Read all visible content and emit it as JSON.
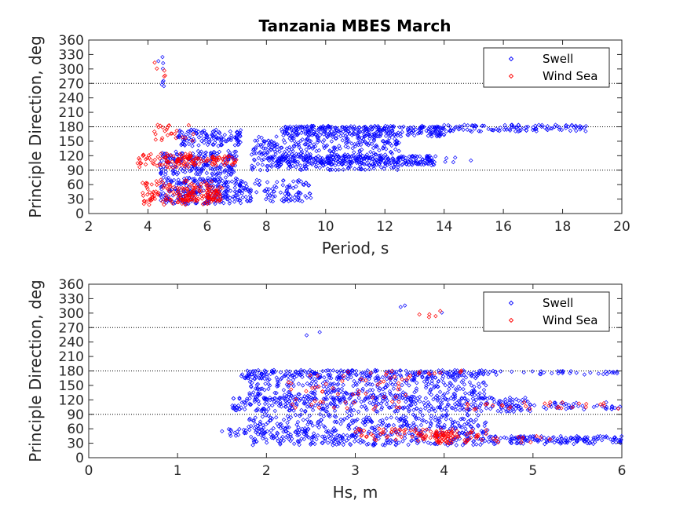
{
  "figure": {
    "title": "Tanzania MBES March"
  },
  "chart_data": [
    {
      "type": "scatter",
      "title": "Tanzania MBES March",
      "xlabel": "Period, s",
      "ylabel": "Principle Direction, deg",
      "xlim": [
        2,
        20
      ],
      "ylim": [
        0,
        360
      ],
      "xticks": [
        2,
        4,
        6,
        8,
        10,
        12,
        14,
        16,
        18,
        20
      ],
      "yticks": [
        0,
        30,
        60,
        90,
        120,
        150,
        180,
        210,
        240,
        270,
        300,
        330,
        360
      ],
      "reference_lines_y": [
        90,
        180,
        270
      ],
      "grid": false,
      "legend": {
        "placement": "top-right",
        "entries": [
          "Swell",
          "Wind Sea"
        ]
      },
      "series": [
        {
          "name": "Swell",
          "color": "#0000ff",
          "marker": "diamond",
          "clusters": [
            {
              "x": [
                4.3,
                4.6
              ],
              "y": [
                250,
                325
              ],
              "n": 8
            },
            {
              "x": [
                4.4,
                7.2
              ],
              "y": [
                20,
                75
              ],
              "n": 260
            },
            {
              "x": [
                4.4,
                7.0
              ],
              "y": [
                80,
                130
              ],
              "n": 200
            },
            {
              "x": [
                5.0,
                7.2
              ],
              "y": [
                140,
                175
              ],
              "n": 120
            },
            {
              "x": [
                7.0,
                9.5
              ],
              "y": [
                25,
                70
              ],
              "n": 110
            },
            {
              "x": [
                7.5,
                12.5
              ],
              "y": [
                90,
                160
              ],
              "n": 380
            },
            {
              "x": [
                8.0,
                13.7
              ],
              "y": [
                100,
                120
              ],
              "n": 260
            },
            {
              "x": [
                8.5,
                14.0
              ],
              "y": [
                160,
                182
              ],
              "n": 300
            },
            {
              "x": [
                13.5,
                18.8
              ],
              "y": [
                170,
                184
              ],
              "n": 120
            },
            {
              "x": [
                13.5,
                15.2
              ],
              "y": [
                105,
                120
              ],
              "n": 6
            }
          ]
        },
        {
          "name": "Wind Sea",
          "color": "#ff0000",
          "marker": "diamond",
          "clusters": [
            {
              "x": [
                4.1,
                4.6
              ],
              "y": [
                280,
                318
              ],
              "n": 5
            },
            {
              "x": [
                3.6,
                5.6
              ],
              "y": [
                95,
                125
              ],
              "n": 70
            },
            {
              "x": [
                4.2,
                5.6
              ],
              "y": [
                150,
                185
              ],
              "n": 25
            },
            {
              "x": [
                3.8,
                6.2
              ],
              "y": [
                18,
                70
              ],
              "n": 110
            },
            {
              "x": [
                5.0,
                7.0
              ],
              "y": [
                100,
                120
              ],
              "n": 70
            },
            {
              "x": [
                5.0,
                6.5
              ],
              "y": [
                25,
                55
              ],
              "n": 90
            }
          ]
        }
      ]
    },
    {
      "type": "scatter",
      "title": "",
      "xlabel": "Hs, m",
      "ylabel": "Principle Direction, deg",
      "xlim": [
        0,
        6
      ],
      "ylim": [
        0,
        360
      ],
      "xticks": [
        0,
        1,
        2,
        3,
        4,
        5,
        6
      ],
      "yticks": [
        0,
        30,
        60,
        90,
        120,
        150,
        180,
        210,
        240,
        270,
        300,
        330,
        360
      ],
      "reference_lines_y": [
        90,
        180,
        270
      ],
      "grid": false,
      "legend": {
        "placement": "top-right",
        "entries": [
          "Swell",
          "Wind Sea"
        ]
      },
      "series": [
        {
          "name": "Swell",
          "color": "#0000ff",
          "marker": "diamond",
          "clusters": [
            {
              "x": [
                2.4,
                2.6
              ],
              "y": [
                250,
                270
              ],
              "n": 2
            },
            {
              "x": [
                3.5,
                4.1
              ],
              "y": [
                300,
                325
              ],
              "n": 3
            },
            {
              "x": [
                1.5,
                2.0
              ],
              "y": [
                45,
                65
              ],
              "n": 20
            },
            {
              "x": [
                1.7,
                4.5
              ],
              "y": [
                165,
                182
              ],
              "n": 260
            },
            {
              "x": [
                4.5,
                6.0
              ],
              "y": [
                172,
                180
              ],
              "n": 35
            },
            {
              "x": [
                1.8,
                4.5
              ],
              "y": [
                120,
                165
              ],
              "n": 320
            },
            {
              "x": [
                1.6,
                5.0
              ],
              "y": [
                95,
                125
              ],
              "n": 360
            },
            {
              "x": [
                5.0,
                6.0
              ],
              "y": [
                100,
                115
              ],
              "n": 40
            },
            {
              "x": [
                1.8,
                4.5
              ],
              "y": [
                25,
                90
              ],
              "n": 520
            },
            {
              "x": [
                4.5,
                6.0
              ],
              "y": [
                28,
                45
              ],
              "n": 150
            }
          ]
        },
        {
          "name": "Wind Sea",
          "color": "#ff0000",
          "marker": "diamond",
          "clusters": [
            {
              "x": [
                3.4,
                4.1
              ],
              "y": [
                290,
                315
              ],
              "n": 5
            },
            {
              "x": [
                2.2,
                3.6
              ],
              "y": [
                100,
                180
              ],
              "n": 60
            },
            {
              "x": [
                3.6,
                4.2
              ],
              "y": [
                170,
                185
              ],
              "n": 10
            },
            {
              "x": [
                3.9,
                4.1
              ],
              "y": [
                30,
                55
              ],
              "n": 50
            },
            {
              "x": [
                3.0,
                4.5
              ],
              "y": [
                35,
                60
              ],
              "n": 80
            },
            {
              "x": [
                4.0,
                6.0
              ],
              "y": [
                100,
                115
              ],
              "n": 30
            },
            {
              "x": [
                4.2,
                5.2
              ],
              "y": [
                30,
                45
              ],
              "n": 20
            }
          ]
        }
      ]
    }
  ]
}
